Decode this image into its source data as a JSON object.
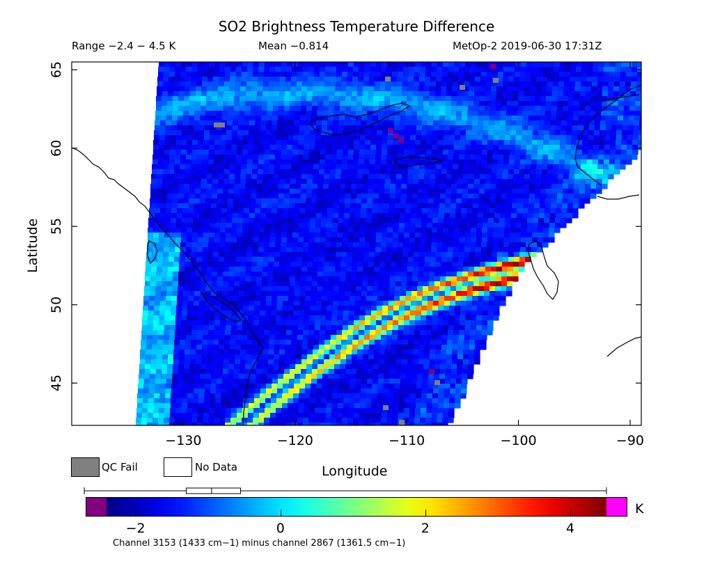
{
  "header": {
    "title": "SO2 Brightness Temperature Difference",
    "range": "Range −2.4 − 4.5 K",
    "mean": "Mean −0.814",
    "satellite_time": "MetOp-2 2019-06-30 17:31Z"
  },
  "map": {
    "xlabel": "Longitude",
    "ylabel": "Latitude",
    "lon_range": [
      -140,
      -89
    ],
    "lat_range": [
      42.3,
      65.5
    ],
    "xticks": [
      {
        "value": -130,
        "label": "−130"
      },
      {
        "value": -120,
        "label": "−120"
      },
      {
        "value": -110,
        "label": "−110"
      },
      {
        "value": -100,
        "label": "−100"
      },
      {
        "value": -90,
        "label": "−90"
      }
    ],
    "yticks": [
      {
        "value": 45,
        "label": "45"
      },
      {
        "value": 50,
        "label": "50"
      },
      {
        "value": 55,
        "label": "55"
      },
      {
        "value": 60,
        "label": "60"
      },
      {
        "value": 65,
        "label": "65"
      }
    ]
  },
  "legend": {
    "qc_fail": "QC Fail",
    "no_data": "No Data",
    "qc_fail_color": "#808080",
    "no_data_color": "#ffffff"
  },
  "colorbar": {
    "unit": "K",
    "min": -2.4,
    "max": 4.5,
    "ticks": [
      {
        "value": -2,
        "label": "−2"
      },
      {
        "value": 0,
        "label": "0"
      },
      {
        "value": 2,
        "label": "2"
      },
      {
        "value": 4,
        "label": "4"
      }
    ],
    "under_color": "#800080",
    "over_color": "#ff00ff",
    "colormap": "jet",
    "boxplot": {
      "whisker_low": -2.4,
      "q1": -1.3,
      "median": -0.95,
      "q3": -0.55,
      "whisker_high": 4.5
    }
  },
  "footer": "Channel 3153 (1433 cm−1) minus channel 2867 (1361.5 cm−1)"
}
